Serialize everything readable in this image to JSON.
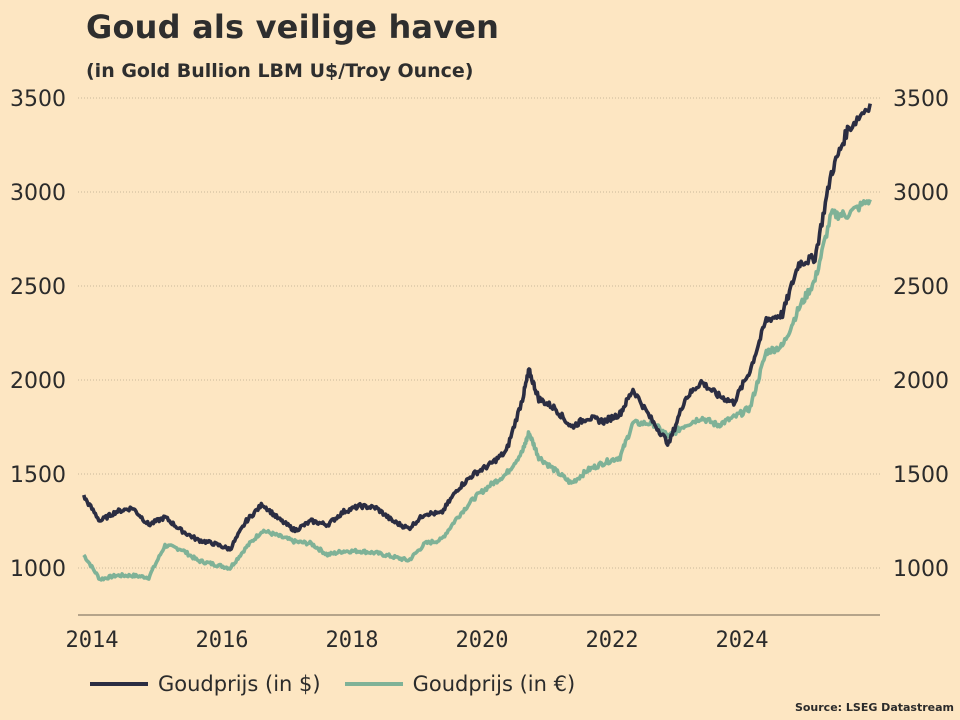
{
  "chart_data": {
    "type": "line",
    "title": "Goud als veilige haven",
    "subtitle": "(in Gold Bullion LBM U$/Troy Ounce)",
    "xlabel": "",
    "ylabel": "",
    "ylim": [
      750,
      3600
    ],
    "xlim": [
      2013.75,
      2025.85
    ],
    "yticks": [
      1000,
      1500,
      2000,
      2500,
      3000,
      3500
    ],
    "xticks": [
      "2014",
      "2016",
      "2018",
      "2020",
      "2022",
      "2024"
    ],
    "grid": "horizontal dotted",
    "legend_position": "bottom-left",
    "source": "Source: LSEG Datastream",
    "x": [
      2013.75,
      2014.0,
      2014.25,
      2014.5,
      2014.75,
      2015.0,
      2015.25,
      2015.5,
      2015.75,
      2016.0,
      2016.25,
      2016.5,
      2016.75,
      2017.0,
      2017.25,
      2017.5,
      2017.75,
      2018.0,
      2018.25,
      2018.5,
      2018.75,
      2019.0,
      2019.25,
      2019.5,
      2019.75,
      2020.0,
      2020.25,
      2020.5,
      2020.6,
      2020.75,
      2021.0,
      2021.25,
      2021.5,
      2021.75,
      2022.0,
      2022.2,
      2022.5,
      2022.75,
      2023.0,
      2023.25,
      2023.5,
      2023.75,
      2024.0,
      2024.25,
      2024.5,
      2024.75,
      2025.0,
      2025.25,
      2025.5,
      2025.85
    ],
    "series": [
      {
        "name": "Goudprijs (in $)",
        "color": "#2b2d42",
        "values": [
          1380,
          1250,
          1300,
          1320,
          1230,
          1270,
          1200,
          1150,
          1130,
          1100,
          1250,
          1340,
          1260,
          1200,
          1250,
          1230,
          1300,
          1330,
          1320,
          1250,
          1210,
          1290,
          1290,
          1420,
          1500,
          1550,
          1620,
          1900,
          2050,
          1900,
          1850,
          1750,
          1800,
          1780,
          1820,
          1950,
          1780,
          1660,
          1900,
          1990,
          1920,
          1880,
          2050,
          2320,
          2350,
          2620,
          2650,
          3100,
          3330,
          3470
        ]
      },
      {
        "name": "Goudprijs (in €)",
        "color": "#7fb297",
        "values": [
          1070,
          940,
          960,
          960,
          950,
          1120,
          1100,
          1040,
          1020,
          1000,
          1110,
          1200,
          1170,
          1140,
          1130,
          1070,
          1090,
          1090,
          1080,
          1060,
          1040,
          1130,
          1150,
          1270,
          1370,
          1440,
          1500,
          1620,
          1720,
          1590,
          1520,
          1450,
          1520,
          1560,
          1590,
          1770,
          1770,
          1700,
          1760,
          1800,
          1760,
          1800,
          1850,
          2150,
          2180,
          2380,
          2530,
          2880,
          2880,
          2960
        ]
      }
    ]
  },
  "legend": {
    "items": [
      {
        "label": "Goudprijs (in $)",
        "color": "#2b2d42"
      },
      {
        "label": "Goudprijs (in €)",
        "color": "#7fb297"
      }
    ]
  },
  "colors": {
    "background": "#fde6c2",
    "grid": "#c9b89a",
    "axis": "#8a7d6a"
  }
}
